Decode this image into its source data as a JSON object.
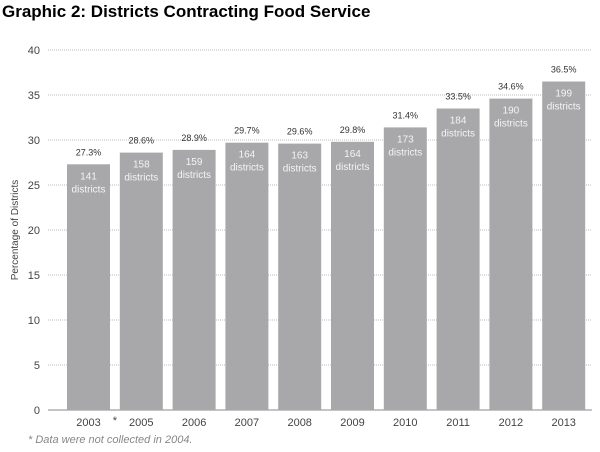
{
  "chart_data": {
    "type": "bar",
    "title": "Graphic 2: Districts Contracting Food Service",
    "xlabel": "",
    "ylabel": "Percentage of Districts",
    "ylim": [
      0,
      40
    ],
    "yticks": [
      0,
      5,
      10,
      15,
      20,
      25,
      30,
      35,
      40
    ],
    "grid": true,
    "categories": [
      "2003",
      "2005",
      "2006",
      "2007",
      "2008",
      "2009",
      "2010",
      "2011",
      "2012",
      "2013"
    ],
    "values": [
      27.3,
      28.6,
      28.9,
      29.7,
      29.6,
      29.8,
      31.4,
      33.5,
      34.6,
      36.5
    ],
    "value_labels": [
      "27.3%",
      "28.6%",
      "28.9%",
      "29.7%",
      "29.6%",
      "29.8%",
      "31.4%",
      "33.5%",
      "34.6%",
      "36.5%"
    ],
    "district_counts": [
      "141",
      "158",
      "159",
      "164",
      "163",
      "164",
      "173",
      "184",
      "190",
      "199"
    ],
    "count_unit": "districts",
    "gap_marker": "*",
    "footnote": "* Data were not collected in 2004.",
    "bar_color": "#a8a8ab"
  }
}
